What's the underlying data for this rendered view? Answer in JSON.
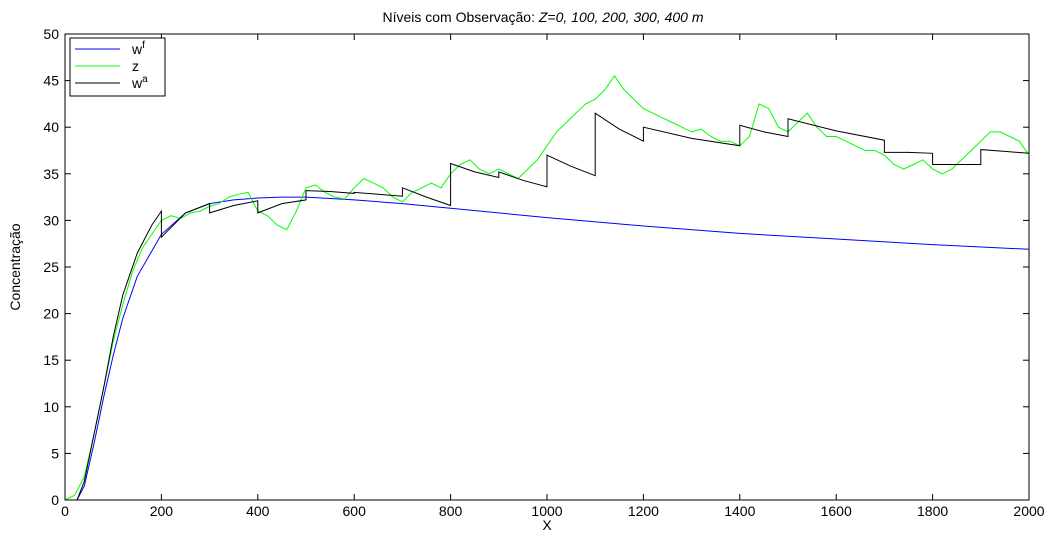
{
  "chart_data": {
    "type": "line",
    "title": "Níveis com Observação: ",
    "title_italic": "Z=0, 100, 200, 300, 400 m",
    "xlabel": "X",
    "ylabel": "Concentração",
    "xlim": [
      0,
      2000
    ],
    "ylim": [
      0,
      50
    ],
    "xticks": [
      "0",
      "200",
      "400",
      "600",
      "800",
      "1000",
      "1200",
      "1400",
      "1600",
      "1800",
      "2000"
    ],
    "yticks": [
      "0",
      "5",
      "10",
      "15",
      "20",
      "25",
      "30",
      "35",
      "40",
      "45",
      "50"
    ],
    "grid": false,
    "legend_position": "top-left",
    "series": [
      {
        "name": "w",
        "name_sup": "f",
        "color": "#0000ff",
        "x": [
          0,
          25,
          40,
          60,
          80,
          100,
          120,
          150,
          200,
          250,
          300,
          350,
          400,
          450,
          500,
          600,
          700,
          800,
          1000,
          1200,
          1400,
          1600,
          1800,
          2000
        ],
        "y": [
          0,
          0,
          1.5,
          6,
          11,
          15.5,
          19.5,
          24,
          28.5,
          30.8,
          31.8,
          32.2,
          32.4,
          32.5,
          32.5,
          32.2,
          31.8,
          31.3,
          30.3,
          29.4,
          28.6,
          28.0,
          27.4,
          26.9
        ]
      },
      {
        "name": "z",
        "color": "#00ff00",
        "x": [
          0,
          20,
          40,
          60,
          80,
          100,
          120,
          140,
          160,
          180,
          200,
          220,
          240,
          260,
          280,
          300,
          320,
          340,
          360,
          380,
          400,
          420,
          440,
          460,
          480,
          500,
          520,
          540,
          560,
          580,
          600,
          620,
          640,
          660,
          680,
          700,
          720,
          740,
          760,
          780,
          800,
          820,
          840,
          860,
          880,
          900,
          920,
          940,
          960,
          980,
          1000,
          1020,
          1040,
          1060,
          1080,
          1100,
          1120,
          1140,
          1160,
          1180,
          1200,
          1220,
          1240,
          1260,
          1280,
          1300,
          1320,
          1340,
          1360,
          1380,
          1400,
          1420,
          1440,
          1460,
          1480,
          1500,
          1520,
          1540,
          1560,
          1580,
          1600,
          1620,
          1640,
          1660,
          1680,
          1700,
          1720,
          1740,
          1760,
          1780,
          1800,
          1820,
          1840,
          1860,
          1880,
          1900,
          1920,
          1940,
          1960,
          1980,
          2000
        ],
        "y": [
          0,
          0.5,
          2.5,
          7,
          12,
          17,
          21,
          24.5,
          27,
          28.5,
          30,
          30.5,
          30.2,
          30.8,
          31,
          31.5,
          31.8,
          32.5,
          32.8,
          33,
          31,
          30.5,
          29.5,
          29,
          31,
          33.5,
          33.8,
          33,
          32.5,
          32.3,
          33.5,
          34.5,
          34,
          33.5,
          32.5,
          32,
          33,
          33.5,
          34,
          33.5,
          35,
          36,
          36.5,
          35.5,
          35,
          35.5,
          35,
          34.5,
          35.5,
          36.5,
          38,
          39.5,
          40.5,
          41.5,
          42.5,
          43,
          44,
          45.5,
          44,
          43,
          42,
          41.5,
          41,
          40.5,
          40,
          39.5,
          39.8,
          39,
          38.5,
          38.5,
          38,
          39,
          42.5,
          42,
          40,
          39.5,
          40.5,
          41.5,
          40,
          39,
          39,
          38.5,
          38,
          37.5,
          37.5,
          37,
          36,
          35.5,
          36,
          36.5,
          35.5,
          35,
          35.5,
          36.5,
          37.5,
          38.5,
          39.5,
          39.5,
          39,
          38.5,
          37
        ]
      },
      {
        "name": "w",
        "name_sup": "a",
        "color": "#000000",
        "x": [
          0,
          25,
          40,
          60,
          80,
          100,
          120,
          150,
          180,
          200,
          200,
          250,
          300,
          300,
          350,
          400,
          400,
          450,
          500,
          500,
          550,
          600,
          600,
          650,
          700,
          700,
          750,
          800,
          800,
          850,
          900,
          900,
          950,
          1000,
          1000,
          1050,
          1100,
          1100,
          1150,
          1200,
          1200,
          1300,
          1400,
          1400,
          1450,
          1500,
          1500,
          1600,
          1700,
          1700,
          1750,
          1800,
          1800,
          1850,
          1900,
          1900,
          1950,
          2000
        ],
        "y": [
          0,
          0,
          2,
          7,
          12,
          17.5,
          22,
          26.5,
          29.5,
          31,
          28.2,
          30.8,
          31.8,
          30.8,
          31.6,
          32.1,
          30.8,
          31.8,
          32.2,
          33.2,
          33.1,
          32.9,
          33,
          32.8,
          32.6,
          33.5,
          32.5,
          31.6,
          36.1,
          35.2,
          34.6,
          35.2,
          34.3,
          33.6,
          37,
          35.8,
          34.8,
          41.5,
          39.8,
          38.5,
          40,
          38.8,
          38,
          40.2,
          39.5,
          39,
          40.9,
          39.6,
          38.6,
          37.3,
          37.3,
          37.2,
          36,
          36,
          36,
          37.6,
          37.4,
          37.2
        ]
      }
    ]
  }
}
